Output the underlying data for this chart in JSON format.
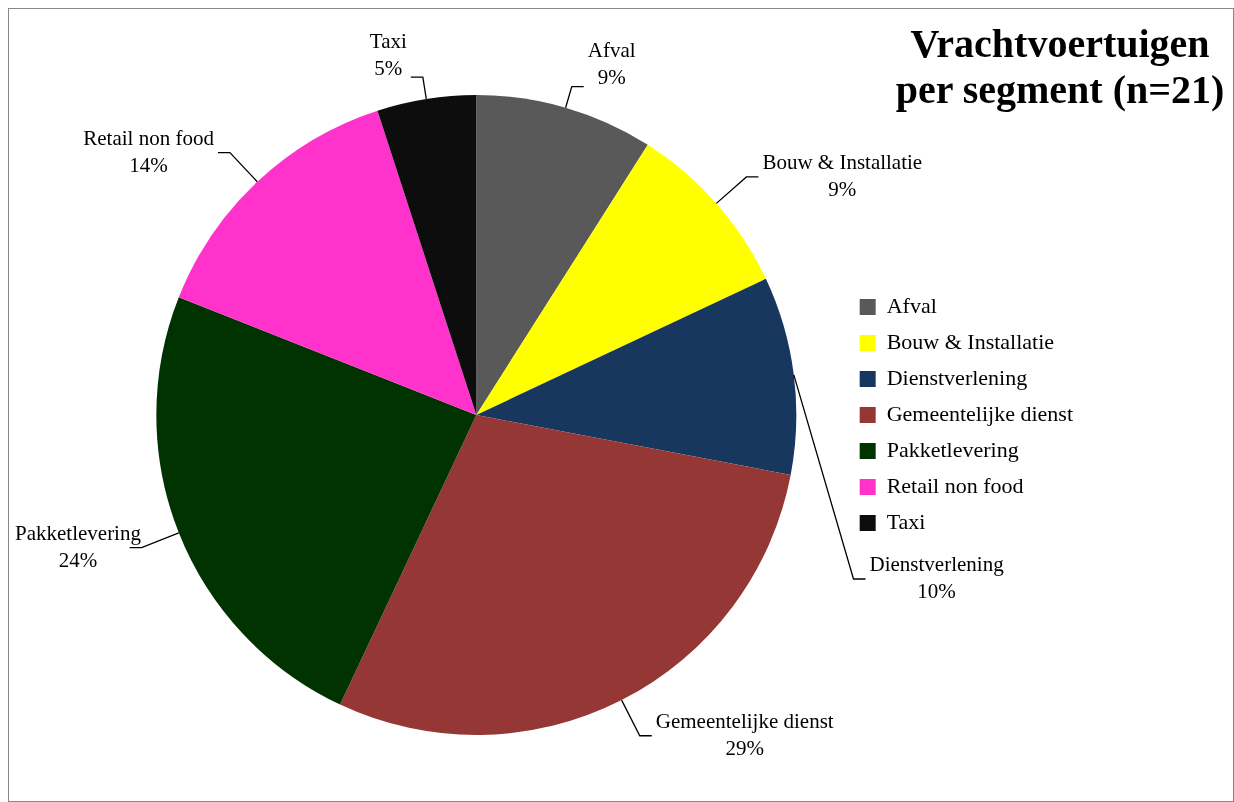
{
  "chart_data": {
    "type": "pie",
    "title": "Vrachtvoertuigen per segment (n=21)",
    "categories": [
      "Afval",
      "Bouw & Installatie",
      "Dienstverlening",
      "Gemeentelijke dienst",
      "Pakketlevering",
      "Retail non food",
      "Taxi"
    ],
    "values": [
      9,
      9,
      10,
      29,
      24,
      14,
      5
    ],
    "value_labels": [
      "9%",
      "9%",
      "10%",
      "29%",
      "24%",
      "14%",
      "5%"
    ],
    "colors": [
      "#595959",
      "#ffff00",
      "#17375e",
      "#953735",
      "#003300",
      "#ff33cc",
      "#0d0d0d"
    ],
    "legend": "right"
  }
}
